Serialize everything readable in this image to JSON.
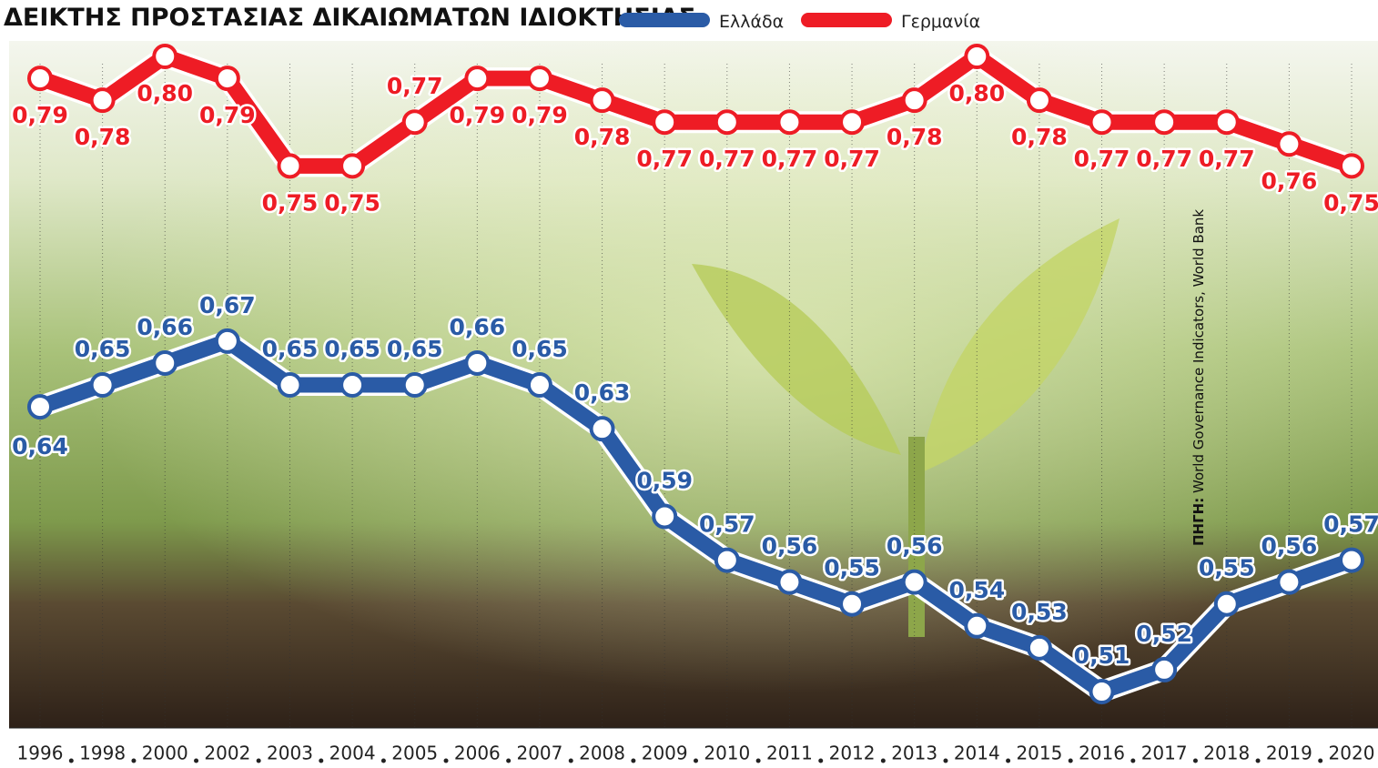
{
  "chart_data": {
    "type": "line",
    "title": "ΔΕΙΚΤΗΣ ΠΡΟΣΤΑΣΙΑΣ ΔΙΚΑΙΩΜΑΤΩΝ ΙΔΙΟΚΤΗΣΙΑΣ",
    "source_label": "ΠΗΓΗ:",
    "source": "World Governance Indicators, World Bank",
    "categories": [
      "1996",
      "1998",
      "2000",
      "2002",
      "2003",
      "2004",
      "2005",
      "2006",
      "2007",
      "2008",
      "2009",
      "2010",
      "2011",
      "2012",
      "2013",
      "2014",
      "2015",
      "2016",
      "2017",
      "2018",
      "2019",
      "2020"
    ],
    "series": [
      {
        "name": "Ελλάδα",
        "color": "#2a5ba6",
        "values": [
          0.64,
          0.65,
          0.66,
          0.67,
          0.65,
          0.65,
          0.65,
          0.66,
          0.65,
          0.63,
          0.59,
          0.57,
          0.56,
          0.55,
          0.56,
          0.54,
          0.53,
          0.51,
          0.52,
          0.55,
          0.56,
          0.57
        ],
        "value_labels": [
          "0,64",
          "0,65",
          "0,66",
          "0,67",
          "0,65",
          "0,65",
          "0,65",
          "0,66",
          "0,65",
          "0,63",
          "0,59",
          "0,57",
          "0,56",
          "0,55",
          "0,56",
          "0,54",
          "0,53",
          "0,51",
          "0,52",
          "0,55",
          "0,56",
          "0,57"
        ]
      },
      {
        "name": "Γερμανία",
        "color": "#ee1c25",
        "values": [
          0.79,
          0.78,
          0.8,
          0.79,
          0.75,
          0.75,
          0.77,
          0.79,
          0.79,
          0.78,
          0.77,
          0.77,
          0.77,
          0.77,
          0.78,
          0.8,
          0.78,
          0.77,
          0.77,
          0.77,
          0.76,
          0.75
        ],
        "value_labels": [
          "0,79",
          "0,78",
          "0,80",
          "0,79",
          "0,75",
          "0,75",
          "0,77",
          "0,79",
          "0,79",
          "0,78",
          "0,77",
          "0,77",
          "0,77",
          "0,77",
          "0,78",
          "0,80",
          "0,78",
          "0,77",
          "0,77",
          "0,77",
          "0,76",
          "0,75"
        ]
      }
    ]
  }
}
